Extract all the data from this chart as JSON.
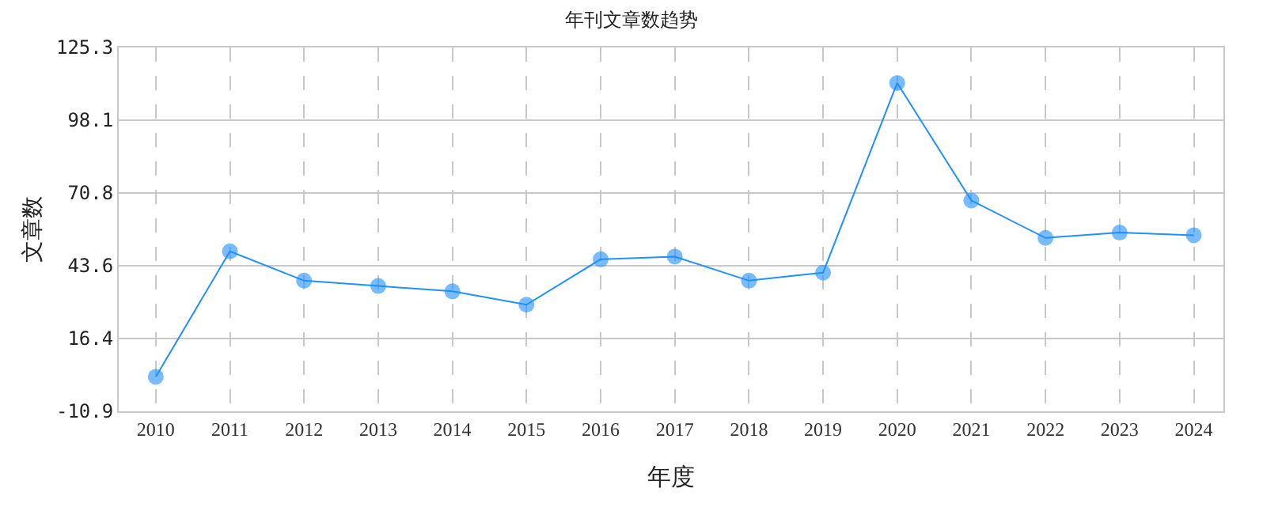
{
  "chart_data": {
    "type": "line",
    "title": "年刊文章数趋势",
    "xlabel": "年度",
    "ylabel": "文章数",
    "categories": [
      "2010",
      "2011",
      "2012",
      "2013",
      "2014",
      "2015",
      "2016",
      "2017",
      "2018",
      "2019",
      "2020",
      "2021",
      "2022",
      "2023",
      "2024"
    ],
    "series": [
      {
        "color": "#1e90ff",
        "values": [
          2,
          49,
          38,
          36,
          34,
          29,
          46,
          47,
          38,
          41,
          112,
          68,
          54,
          56,
          55
        ]
      }
    ],
    "ylim": [
      -10.9,
      125.3
    ],
    "yticks": [
      -10.9,
      16.4,
      43.6,
      70.8,
      98.1,
      125.3
    ],
    "grid": true,
    "marker": "circle",
    "line_style": "solid"
  }
}
